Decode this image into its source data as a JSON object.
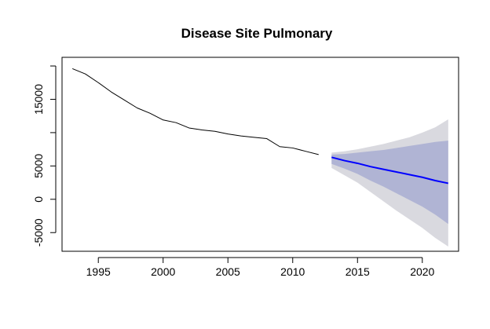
{
  "chart_data": {
    "type": "line",
    "title": "Disease Site Pulmonary",
    "xlabel": "",
    "ylabel": "",
    "xlim": [
      1992.2,
      2022.8
    ],
    "ylim": [
      -7800,
      21300
    ],
    "x_ticks": [
      1995,
      2000,
      2005,
      2010,
      2015,
      2020
    ],
    "y_ticks": [
      -5000,
      0,
      5000,
      15000
    ],
    "y_minor_ticks": [
      10000,
      20000
    ],
    "grid": false,
    "series": [
      {
        "role": "observed",
        "color": "#000000",
        "x": [
          1993,
          1994,
          1995,
          1996,
          1997,
          1998,
          1999,
          2000,
          2001,
          2002,
          2003,
          2004,
          2005,
          2006,
          2007,
          2008,
          2009,
          2010,
          2011,
          2012
        ],
        "y": [
          19600,
          18800,
          17500,
          16100,
          14900,
          13700,
          12900,
          11900,
          11500,
          10700,
          10400,
          10200,
          9800,
          9500,
          9300,
          9100,
          7900,
          7700,
          7200,
          6700
        ]
      },
      {
        "role": "forecast",
        "color": "#0000ff",
        "x": [
          2013,
          2014,
          2015,
          2016,
          2017,
          2018,
          2019,
          2020,
          2021,
          2022
        ],
        "y": [
          6300,
          5800,
          5400,
          4900,
          4500,
          4100,
          3700,
          3300,
          2800,
          2400
        ]
      }
    ],
    "intervals": [
      {
        "level": "outer",
        "color": "#d9d9df",
        "x": [
          2013,
          2014,
          2015,
          2016,
          2017,
          2018,
          2019,
          2020,
          2021,
          2022
        ],
        "lower": [
          4700,
          3600,
          2500,
          1100,
          -300,
          -1700,
          -3000,
          -4300,
          -5800,
          -7100
        ],
        "upper": [
          7000,
          7200,
          7500,
          7900,
          8300,
          8800,
          9300,
          10000,
          10800,
          12000
        ]
      },
      {
        "level": "inner",
        "color": "#b0b4d4",
        "x": [
          2013,
          2014,
          2015,
          2016,
          2017,
          2018,
          2019,
          2020,
          2021,
          2022
        ],
        "lower": [
          5300,
          4600,
          3800,
          2800,
          1900,
          900,
          -100,
          -1100,
          -2300,
          -3700
        ],
        "upper": [
          6700,
          6800,
          7000,
          7200,
          7400,
          7700,
          8000,
          8300,
          8600,
          8800
        ]
      }
    ]
  }
}
